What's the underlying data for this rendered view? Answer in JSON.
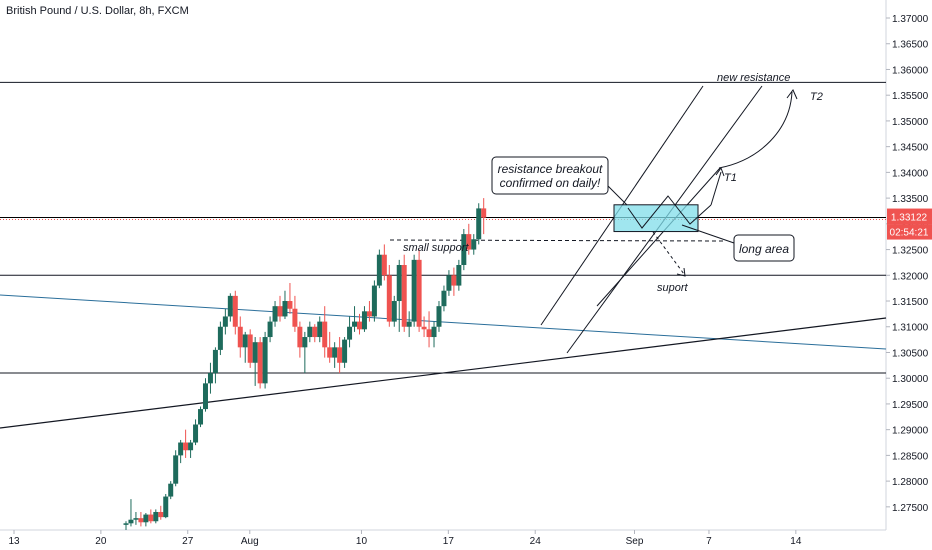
{
  "chart_data": {
    "type": "candlestick",
    "title": "British Pound / U.S. Dollar, 8h, FXCM",
    "x_ticks": [
      "13",
      "20",
      "27",
      "Aug",
      "10",
      "17",
      "24",
      "Sep",
      "7",
      "14"
    ],
    "y_ticks": [
      "1.37000",
      "1.36500",
      "1.36000",
      "1.35500",
      "1.35000",
      "1.34500",
      "1.34000",
      "1.33500",
      "1.33000",
      "1.32500",
      "1.32000",
      "1.31500",
      "1.31000",
      "1.30500",
      "1.30000",
      "1.29500",
      "1.29000",
      "1.28500",
      "1.28000",
      "1.27500"
    ],
    "ylim": [
      1.2705,
      1.3735
    ],
    "last_price": "1.33122",
    "countdown": "02:54:21",
    "candles": [
      [
        1.2715,
        1.2722,
        1.2705,
        1.2718
      ],
      [
        1.2718,
        1.2765,
        1.2712,
        1.2725
      ],
      [
        1.2725,
        1.274,
        1.2715,
        1.2728
      ],
      [
        1.2728,
        1.274,
        1.2712,
        1.272
      ],
      [
        1.272,
        1.2738,
        1.2712,
        1.2735
      ],
      [
        1.2735,
        1.2745,
        1.2718,
        1.2722
      ],
      [
        1.2722,
        1.2745,
        1.2718,
        1.274
      ],
      [
        1.274,
        1.2752,
        1.2725,
        1.273
      ],
      [
        1.273,
        1.2775,
        1.2728,
        1.277
      ],
      [
        1.277,
        1.28,
        1.2765,
        1.2795
      ],
      [
        1.2795,
        1.286,
        1.279,
        1.285
      ],
      [
        1.285,
        1.288,
        1.2835,
        1.2875
      ],
      [
        1.2875,
        1.29,
        1.2845,
        1.286
      ],
      [
        1.286,
        1.288,
        1.2845,
        1.2875
      ],
      [
        1.2875,
        1.292,
        1.287,
        1.291
      ],
      [
        1.291,
        1.2945,
        1.2905,
        1.294
      ],
      [
        1.294,
        1.3,
        1.2935,
        1.299
      ],
      [
        1.299,
        1.303,
        1.297,
        1.301
      ],
      [
        1.301,
        1.306,
        1.299,
        1.3055
      ],
      [
        1.3055,
        1.311,
        1.3045,
        1.31
      ],
      [
        1.31,
        1.3135,
        1.3085,
        1.312
      ],
      [
        1.312,
        1.3165,
        1.311,
        1.316
      ],
      [
        1.316,
        1.317,
        1.3085,
        1.31
      ],
      [
        1.31,
        1.312,
        1.304,
        1.306
      ],
      [
        1.306,
        1.309,
        1.303,
        1.3085
      ],
      [
        1.3085,
        1.3095,
        1.302,
        1.303
      ],
      [
        1.303,
        1.308,
        1.2985,
        1.307
      ],
      [
        1.307,
        1.308,
        1.298,
        1.299
      ],
      [
        1.299,
        1.309,
        1.298,
        1.308
      ],
      [
        1.308,
        1.312,
        1.307,
        1.311
      ],
      [
        1.311,
        1.315,
        1.31,
        1.314
      ],
      [
        1.314,
        1.316,
        1.311,
        1.312
      ],
      [
        1.312,
        1.317,
        1.3115,
        1.315
      ],
      [
        1.315,
        1.3185,
        1.3125,
        1.3135
      ],
      [
        1.3135,
        1.316,
        1.309,
        1.31
      ],
      [
        1.31,
        1.311,
        1.304,
        1.306
      ],
      [
        1.306,
        1.309,
        1.301,
        1.308
      ],
      [
        1.308,
        1.311,
        1.307,
        1.31
      ],
      [
        1.31,
        1.3105,
        1.307,
        1.308
      ],
      [
        1.308,
        1.312,
        1.307,
        1.311
      ],
      [
        1.311,
        1.314,
        1.304,
        1.306
      ],
      [
        1.306,
        1.309,
        1.303,
        1.304
      ],
      [
        1.304,
        1.307,
        1.302,
        1.306
      ],
      [
        1.306,
        1.308,
        1.301,
        1.303
      ],
      [
        1.303,
        1.308,
        1.302,
        1.3075
      ],
      [
        1.3075,
        1.312,
        1.306,
        1.31
      ],
      [
        1.31,
        1.314,
        1.309,
        1.311
      ],
      [
        1.311,
        1.3125,
        1.3085,
        1.3095
      ],
      [
        1.3095,
        1.314,
        1.309,
        1.313
      ],
      [
        1.313,
        1.315,
        1.311,
        1.312
      ],
      [
        1.312,
        1.319,
        1.311,
        1.318
      ],
      [
        1.318,
        1.325,
        1.3175,
        1.324
      ],
      [
        1.324,
        1.326,
        1.319,
        1.32
      ],
      [
        1.32,
        1.322,
        1.31,
        1.311
      ],
      [
        1.311,
        1.316,
        1.31,
        1.315
      ],
      [
        1.315,
        1.323,
        1.309,
        1.322
      ],
      [
        1.322,
        1.324,
        1.309,
        1.31
      ],
      [
        1.31,
        1.313,
        1.308,
        1.311
      ],
      [
        1.311,
        1.324,
        1.31,
        1.323
      ],
      [
        1.323,
        1.325,
        1.309,
        1.31
      ],
      [
        1.31,
        1.312,
        1.308,
        1.3095
      ],
      [
        1.3095,
        1.313,
        1.306,
        1.308
      ],
      [
        1.308,
        1.311,
        1.306,
        1.31
      ],
      [
        1.31,
        1.315,
        1.309,
        1.314
      ],
      [
        1.314,
        1.318,
        1.313,
        1.317
      ],
      [
        1.317,
        1.321,
        1.316,
        1.32
      ],
      [
        1.32,
        1.3215,
        1.316,
        1.318
      ],
      [
        1.318,
        1.323,
        1.317,
        1.322
      ],
      [
        1.322,
        1.329,
        1.321,
        1.328
      ],
      [
        1.328,
        1.33,
        1.324,
        1.325
      ],
      [
        1.325,
        1.328,
        1.324,
        1.327
      ],
      [
        1.327,
        1.334,
        1.326,
        1.333
      ],
      [
        1.333,
        1.335,
        1.328,
        1.3312
      ]
    ],
    "drawn_lines": {
      "horizontal_levels": [
        1.3575,
        1.32,
        1.301
      ],
      "current_price_line": 1.33122
    },
    "long_area": {
      "top": 1.3337,
      "bottom": 1.3285
    },
    "annotations": {
      "new_resistance": "new resistance",
      "t2": "T2",
      "t1": "T1",
      "breakout_line1": "resistance breakout",
      "breakout_line2": "confirmed on daily!",
      "small_support": "small support",
      "long_area": "long area",
      "suport": "suport"
    },
    "colors": {
      "up": "#26a69a",
      "down": "#ef5350",
      "body_up": "#1b5e50",
      "price_line": "#ef5350",
      "trend_blue": "#2a6e9a",
      "zone": "#80deea"
    }
  }
}
